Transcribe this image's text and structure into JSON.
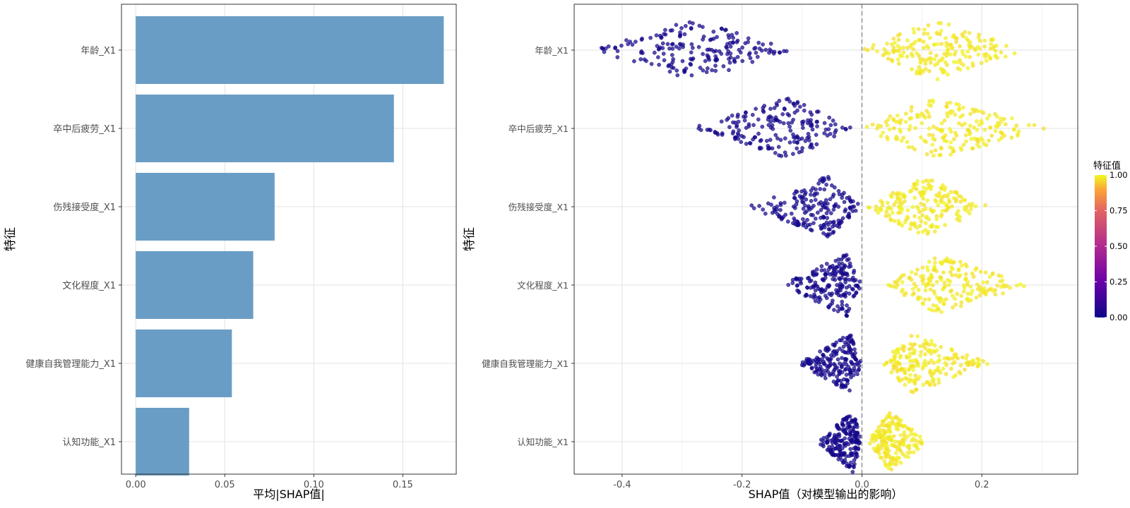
{
  "chart_data": [
    {
      "type": "bar",
      "orientation": "horizontal",
      "xlabel": "平均|SHAP值|",
      "ylabel": "特征",
      "xlim": [
        -0.008,
        0.18
      ],
      "xticks": [
        0.0,
        0.05,
        0.1,
        0.15
      ],
      "xtick_labels": [
        "0.00",
        "0.05",
        "0.10",
        "0.15"
      ],
      "categories": [
        "年龄_X1",
        "卒中后疲劳_X1",
        "伤残接受度_X1",
        "文化程度_X1",
        "健康自我管理能力_X1",
        "认知功能_X1"
      ],
      "values": [
        0.173,
        0.145,
        0.078,
        0.066,
        0.054,
        0.03
      ],
      "bar_color": "#6a9dc5",
      "grid": true
    },
    {
      "type": "scatter",
      "subtype": "beeswarm",
      "xlabel": "SHAP值（对模型输出的影响）",
      "ylabel": "特征",
      "xlim": [
        -0.48,
        0.36
      ],
      "xticks": [
        -0.4,
        -0.2,
        0.0,
        0.2
      ],
      "xtick_labels": [
        "-0.4",
        "-0.2",
        "0.0",
        "0.2"
      ],
      "zero_line": true,
      "categories": [
        "年龄_X1",
        "卒中后疲劳_X1",
        "伤残接受度_X1",
        "文化程度_X1",
        "健康自我管理能力_X1",
        "认知功能_X1"
      ],
      "series": [
        {
          "feature": "年龄_X1",
          "low": {
            "min": -0.45,
            "max": -0.115,
            "mode": -0.28
          },
          "high": {
            "min": 0.0,
            "max": 0.275,
            "mode": 0.12
          }
        },
        {
          "feature": "卒中后疲劳_X1",
          "low": {
            "min": -0.285,
            "max": -0.015,
            "mode": -0.12
          },
          "high": {
            "min": 0.0,
            "max": 0.315,
            "mode": 0.12
          }
        },
        {
          "feature": "伤残接受度_X1",
          "low": {
            "min": -0.195,
            "max": 0.0,
            "mode": -0.055
          },
          "high": {
            "min": 0.005,
            "max": 0.215,
            "mode": 0.1
          }
        },
        {
          "feature": "文化程度_X1",
          "low": {
            "min": -0.135,
            "max": 0.0,
            "mode": -0.025
          },
          "high": {
            "min": 0.04,
            "max": 0.275,
            "mode": 0.13
          }
        },
        {
          "feature": "健康自我管理能力_X1",
          "low": {
            "min": -0.105,
            "max": 0.0,
            "mode": -0.02
          },
          "high": {
            "min": 0.035,
            "max": 0.215,
            "mode": 0.08
          }
        },
        {
          "feature": "认知功能_X1",
          "low": {
            "min": -0.075,
            "max": 0.0,
            "mode": -0.015
          },
          "high": {
            "min": 0.01,
            "max": 0.11,
            "mode": 0.045
          }
        }
      ],
      "legend": {
        "title": "特征值",
        "placement": "right",
        "ticks": [
          "1.00",
          "0.75",
          "0.50",
          "0.25",
          "0.00"
        ],
        "low_color": "#0d0887",
        "high_color": "#f0f921"
      },
      "grid": true
    }
  ]
}
